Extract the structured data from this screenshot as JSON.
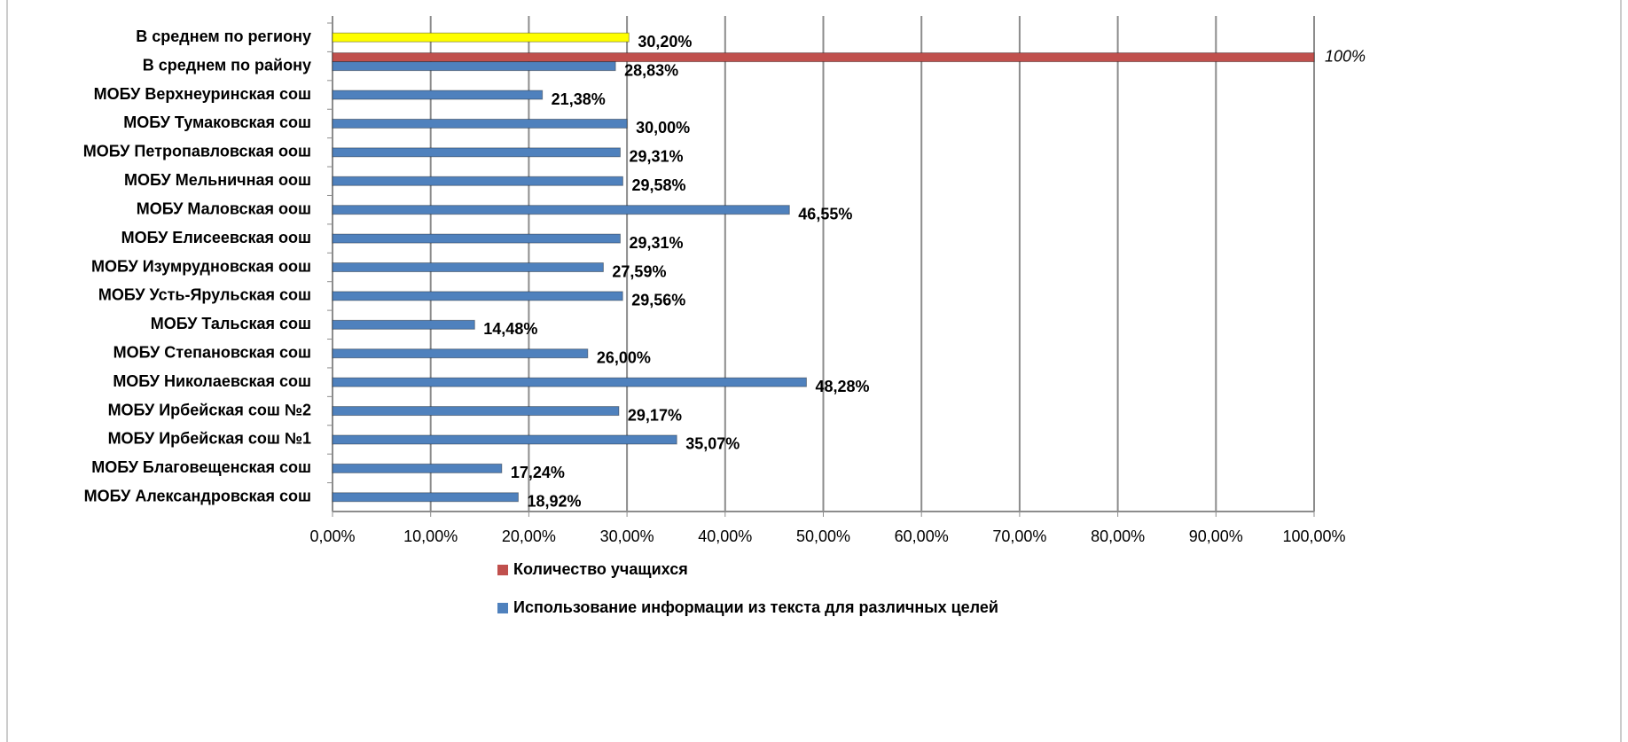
{
  "chart_data": {
    "type": "bar",
    "orientation": "horizontal",
    "categories": [
      "В среднем по региону",
      "В среднем  по району",
      "МОБУ Верхнеуринская сош",
      "МОБУ Тумаковская сош",
      "МОБУ Петропавловская оош",
      "МОБУ Мельничная оош",
      "МОБУ Маловская оош",
      "МОБУ Елисеевская оош",
      "МОБУ Изумрудновская оош",
      "МОБУ Усть-Ярульская сош",
      "МОБУ Тальская сош",
      "МОБУ Степановская сош",
      "МОБУ Николаевская сош",
      "МОБУ Ирбейская сош №2",
      "МОБУ Ирбейская сош №1",
      "МОБУ Благовещенская сош",
      "МОБУ Александровская сош"
    ],
    "series": [
      {
        "name": "Количество учащихся",
        "color": "#c0504d",
        "values": [
          null,
          100,
          null,
          null,
          null,
          null,
          null,
          null,
          null,
          null,
          null,
          null,
          null,
          null,
          null,
          null,
          null
        ],
        "value_labels": [
          null,
          "100%",
          null,
          null,
          null,
          null,
          null,
          null,
          null,
          null,
          null,
          null,
          null,
          null,
          null,
          null,
          null
        ]
      },
      {
        "name": "Использование информации из текста для различных целей",
        "color": "#4f81bd",
        "colors": [
          "#ffff00",
          "#4f81bd",
          "#4f81bd",
          "#4f81bd",
          "#4f81bd",
          "#4f81bd",
          "#4f81bd",
          "#4f81bd",
          "#4f81bd",
          "#4f81bd",
          "#4f81bd",
          "#4f81bd",
          "#4f81bd",
          "#4f81bd",
          "#4f81bd",
          "#4f81bd",
          "#4f81bd"
        ],
        "values": [
          30.2,
          28.83,
          21.38,
          30.0,
          29.31,
          29.58,
          46.55,
          29.31,
          27.59,
          29.56,
          14.48,
          26.0,
          48.28,
          29.17,
          35.07,
          17.24,
          18.92
        ],
        "value_labels": [
          "30,20%",
          "28,83%",
          "21,38%",
          "30,00%",
          "29,31%",
          "29,58%",
          "46,55%",
          "29,31%",
          "27,59%",
          "29,56%",
          "14,48%",
          "26,00%",
          "48,28%",
          "29,17%",
          "35,07%",
          "17,24%",
          "18,92%"
        ]
      }
    ],
    "xlim": [
      0,
      100
    ],
    "xticks": [
      {
        "value": 0,
        "label": "0,00%"
      },
      {
        "value": 10,
        "label": "10,00%"
      },
      {
        "value": 20,
        "label": "20,00%"
      },
      {
        "value": 30,
        "label": "30,00%"
      },
      {
        "value": 40,
        "label": "40,00%"
      },
      {
        "value": 50,
        "label": "50,00%"
      },
      {
        "value": 60,
        "label": "60,00%"
      },
      {
        "value": 70,
        "label": "70,00%"
      },
      {
        "value": 80,
        "label": "80,00%"
      },
      {
        "value": 90,
        "label": "90,00%"
      },
      {
        "value": 100,
        "label": "100,00%"
      }
    ],
    "grid": true,
    "legend": "bottom"
  }
}
